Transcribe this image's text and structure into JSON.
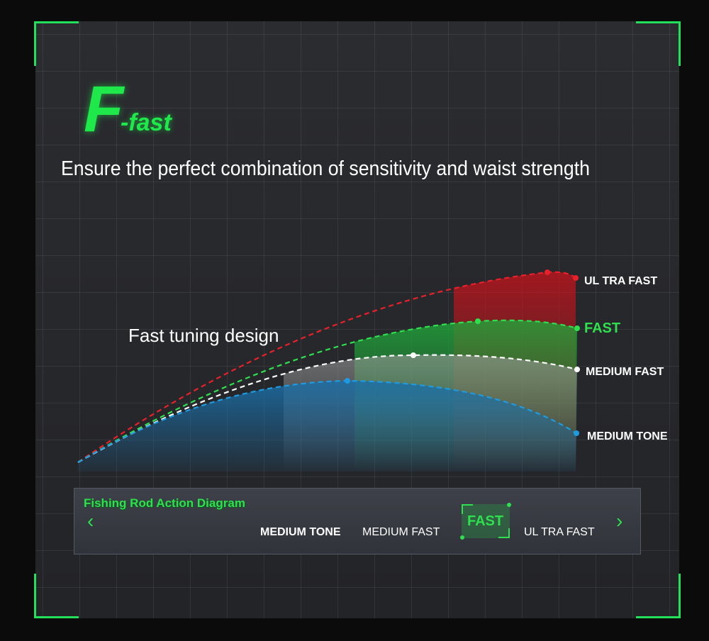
{
  "logo": {
    "letter": "F",
    "word": "-fast"
  },
  "headline": "Ensure the perfect combination of sensitivity and waist strength",
  "subheading": "Fast tuning design",
  "curves": [
    {
      "label": "UL TRA FAST",
      "color": "#e8202a"
    },
    {
      "label": "FAST",
      "color": "#2ee04e"
    },
    {
      "label": "MEDIUM FAST",
      "color": "#ffffff"
    },
    {
      "label": "MEDIUM TONE",
      "color": "#1e9be0"
    }
  ],
  "selector": {
    "title": "Fishing Rod Action Diagram",
    "options": [
      "MEDIUM TONE",
      "MEDIUM FAST",
      "FAST",
      "UL TRA FAST"
    ],
    "selected": "FAST",
    "prev_icon": "chevron-left-icon",
    "next_icon": "chevron-right-icon"
  }
}
